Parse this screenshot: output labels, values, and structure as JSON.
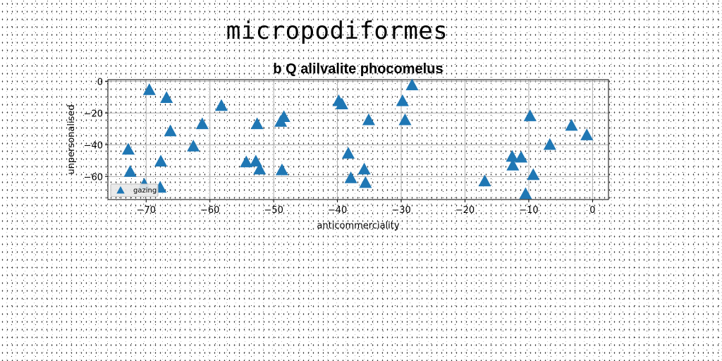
{
  "page_title": "micropodiformes",
  "chart_data": {
    "type": "scatter",
    "title": "b Q alilvalite phocomelus",
    "xlabel": "anticommerciality",
    "ylabel": "unpersonalised",
    "xlim": [
      -76,
      2.5
    ],
    "ylim": [
      -74.5,
      1
    ],
    "xticks": [
      -70,
      -60,
      -50,
      -40,
      -30,
      -20,
      -10,
      0
    ],
    "xtick_labels": [
      "−70",
      "−60",
      "−50",
      "−40",
      "−30",
      "−20",
      "−10",
      "0"
    ],
    "yticks": [
      0,
      -20,
      -40,
      -60
    ],
    "ytick_labels": [
      "0",
      "−20",
      "−40",
      "−60"
    ],
    "grid": true,
    "legend": "lower-left",
    "marker": "triangle-up",
    "color": "#1f77b4",
    "series": [
      {
        "name": "gazing",
        "points": [
          {
            "x": -69.5,
            "y": -5.5
          },
          {
            "x": -66.8,
            "y": -10.5
          },
          {
            "x": -66.2,
            "y": -31.5
          },
          {
            "x": -72.8,
            "y": -43
          },
          {
            "x": -72.5,
            "y": -57
          },
          {
            "x": -67.7,
            "y": -50.5
          },
          {
            "x": -70.3,
            "y": -65
          },
          {
            "x": -67.8,
            "y": -67
          },
          {
            "x": -61.2,
            "y": -27
          },
          {
            "x": -62.6,
            "y": -41
          },
          {
            "x": -58.2,
            "y": -15.5
          },
          {
            "x": -54.3,
            "y": -51
          },
          {
            "x": -52.8,
            "y": -50.5
          },
          {
            "x": -52.2,
            "y": -55.5
          },
          {
            "x": -52.6,
            "y": -27
          },
          {
            "x": -48.9,
            "y": -25.5
          },
          {
            "x": -48.4,
            "y": -22.5
          },
          {
            "x": -48.7,
            "y": -56
          },
          {
            "x": -39.8,
            "y": -12.5
          },
          {
            "x": -39.3,
            "y": -14.5
          },
          {
            "x": -38.3,
            "y": -45.5
          },
          {
            "x": -37.9,
            "y": -61
          },
          {
            "x": -35.8,
            "y": -55.5
          },
          {
            "x": -35.6,
            "y": -64
          },
          {
            "x": -35.1,
            "y": -24.5
          },
          {
            "x": -28.3,
            "y": -2.5
          },
          {
            "x": -29.8,
            "y": -12.5
          },
          {
            "x": -29.4,
            "y": -24.5
          },
          {
            "x": -16.9,
            "y": -63
          },
          {
            "x": -12.6,
            "y": -47.5
          },
          {
            "x": -12.5,
            "y": -53
          },
          {
            "x": -11.2,
            "y": -48
          },
          {
            "x": -10.5,
            "y": -71
          },
          {
            "x": -9.8,
            "y": -22
          },
          {
            "x": -9.3,
            "y": -59
          },
          {
            "x": -6.7,
            "y": -40
          },
          {
            "x": -3.3,
            "y": -28
          },
          {
            "x": -0.9,
            "y": -34
          }
        ]
      }
    ]
  }
}
